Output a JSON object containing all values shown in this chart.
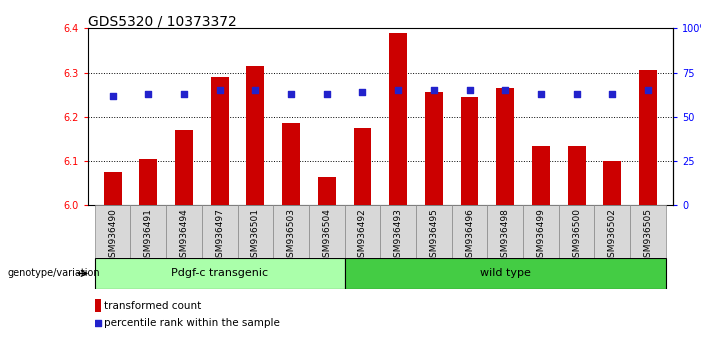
{
  "title": "GDS5320 / 10373372",
  "categories": [
    "GSM936490",
    "GSM936491",
    "GSM936494",
    "GSM936497",
    "GSM936501",
    "GSM936503",
    "GSM936504",
    "GSM936492",
    "GSM936493",
    "GSM936495",
    "GSM936496",
    "GSM936498",
    "GSM936499",
    "GSM936500",
    "GSM936502",
    "GSM936505"
  ],
  "bar_values": [
    6.075,
    6.105,
    6.17,
    6.29,
    6.315,
    6.185,
    6.065,
    6.175,
    6.39,
    6.255,
    6.245,
    6.265,
    6.135,
    6.135,
    6.1,
    6.305
  ],
  "percentile_values": [
    62,
    63,
    63,
    65,
    65,
    63,
    63,
    64,
    65,
    65,
    65,
    65,
    63,
    63,
    63,
    65
  ],
  "ylim_left": [
    6.0,
    6.4
  ],
  "ylim_right": [
    0,
    100
  ],
  "bar_color": "#cc0000",
  "dot_color": "#2222cc",
  "yticks_left": [
    6.0,
    6.1,
    6.2,
    6.3,
    6.4
  ],
  "yticks_right": [
    0,
    25,
    50,
    75,
    100
  ],
  "group1_label": "Pdgf-c transgenic",
  "group2_label": "wild type",
  "group1_count": 7,
  "group2_count": 9,
  "legend_bar_label": "transformed count",
  "legend_dot_label": "percentile rank within the sample",
  "genotype_label": "genotype/variation",
  "group1_color": "#aaffaa",
  "group2_color": "#44cc44",
  "title_fontsize": 10,
  "axis_fontsize": 7,
  "tick_fontsize": 6.5
}
